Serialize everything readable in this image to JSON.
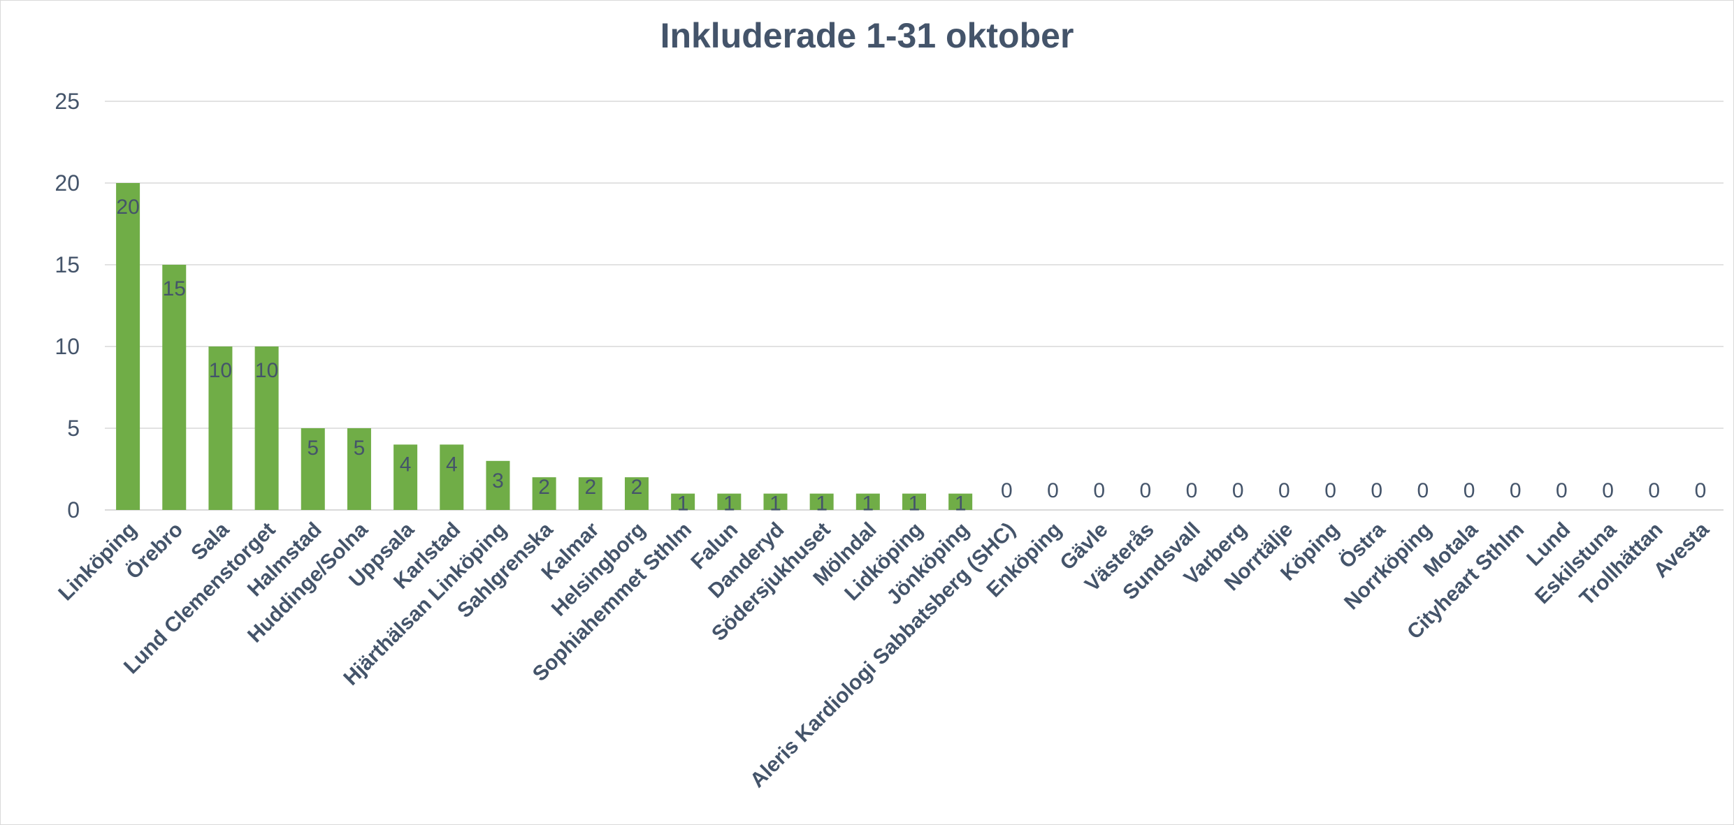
{
  "chart_data": {
    "type": "bar",
    "title": "Inkluderade 1-31 oktober",
    "xlabel": "",
    "ylabel": "",
    "ylim": [
      0,
      25
    ],
    "yticks": [
      0,
      5,
      10,
      15,
      20,
      25
    ],
    "grid": true,
    "legend": "none",
    "bar_color": "#70ad47",
    "text_color": "#44546a",
    "categories": [
      "Linköping",
      "Örebro",
      "Sala",
      "Lund Clemenstorget",
      "Halmstad",
      "Huddinge/Solna",
      "Uppsala",
      "Karlstad",
      "Hjärthälsan Linköping",
      "Sahlgrenska",
      "Kalmar",
      "Helsingborg",
      "Sophiahemmet Sthlm",
      "Falun",
      "Danderyd",
      "Södersjukhuset",
      "Mölndal",
      "Lidköping",
      "Jönköping",
      "Aleris Kardiologi Sabbatsberg (SHC)",
      "Enköping",
      "Gävle",
      "Västerås",
      "Sundsvall",
      "Varberg",
      "Norrtälje",
      "Köping",
      "Östra",
      "Norrköping",
      "Motala",
      "Cityheart Sthlm",
      "Lund",
      "Eskilstuna",
      "Trollhättan",
      "Avesta"
    ],
    "values": [
      20,
      15,
      10,
      10,
      5,
      5,
      4,
      4,
      3,
      2,
      2,
      2,
      1,
      1,
      1,
      1,
      1,
      1,
      1,
      0,
      0,
      0,
      0,
      0,
      0,
      0,
      0,
      0,
      0,
      0,
      0,
      0,
      0,
      0,
      0
    ]
  }
}
